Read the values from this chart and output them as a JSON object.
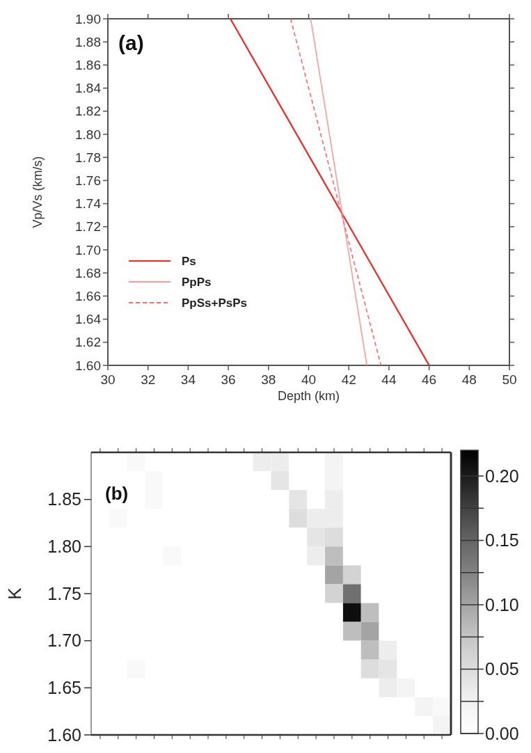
{
  "chart_data": [
    {
      "type": "line",
      "xlabel": "Depth (km)",
      "ylabel": "Vp/Vs (km/s)",
      "annotations": [
        "(a)"
      ],
      "xlim": [
        30,
        50
      ],
      "ylim": [
        1.6,
        1.9
      ],
      "xticks": [
        30,
        32,
        34,
        36,
        38,
        40,
        42,
        44,
        46,
        48,
        50
      ],
      "yticks": [
        {
          "value": 1.6,
          "label": "1.60"
        },
        1.62,
        1.64,
        1.66,
        1.68,
        {
          "value": 1.7,
          "label": "1.70"
        },
        1.72,
        1.74,
        1.76,
        1.78,
        {
          "value": 1.8,
          "label": "1.80"
        },
        1.82,
        1.84,
        1.86,
        1.88,
        {
          "value": 1.9,
          "label": "1.90"
        }
      ],
      "grid": false,
      "legend": "bottom left",
      "marker": "none",
      "series": [
        {
          "name": "Ps",
          "color": "#ff2020",
          "line_style": "solid",
          "x": [
            36.1,
            46.0
          ],
          "values": [
            1.9,
            1.6
          ]
        },
        {
          "name": "PpPs",
          "color": "#ff9a9a",
          "line_style": "solid",
          "x": [
            40.1,
            42.9
          ],
          "values": [
            1.9,
            1.6
          ]
        },
        {
          "name": "PpSs+PsPs",
          "color": "#ff6a6a",
          "line_style": "dashed",
          "x": [
            39.1,
            43.6
          ],
          "values": [
            1.9,
            1.6
          ]
        }
      ]
    },
    {
      "type": "heatmap",
      "ylabel": "K",
      "annotations": [
        "(b)"
      ],
      "ylim": [
        1.6,
        1.9
      ],
      "yticks": [
        {
          "value": 1.6,
          "label": "1.60"
        },
        1.65,
        {
          "value": 1.7,
          "label": "1.70"
        },
        1.75,
        {
          "value": 1.8,
          "label": "1.80"
        },
        1.85
      ],
      "clim": [
        0,
        0.22
      ],
      "cticks": [
        {
          "value": 0,
          "label": "0.00"
        },
        {
          "value": 0.025,
          "label": null
        },
        0.05,
        {
          "value": 0.075,
          "label": null
        },
        {
          "value": 0.1,
          "label": "0.10"
        },
        {
          "value": 0.125,
          "label": null
        },
        0.15,
        {
          "value": 0.175,
          "label": null
        },
        {
          "value": 0.2,
          "label": "0.20"
        }
      ],
      "categories": [
        null,
        null,
        null,
        null,
        null,
        null,
        null,
        null,
        null,
        null,
        null,
        null,
        null,
        null,
        null,
        null,
        null,
        null,
        null,
        null
      ],
      "cells": [
        [
          0,
          0,
          0.01,
          0,
          0,
          0,
          0,
          0,
          0,
          0.03,
          0.03,
          0,
          0,
          0.02,
          0,
          0,
          0,
          0,
          0,
          0
        ],
        [
          0,
          0,
          0,
          0.01,
          0,
          0,
          0,
          0,
          0,
          0,
          0.04,
          0,
          0,
          0.02,
          0,
          0,
          0,
          0,
          0,
          0
        ],
        [
          0,
          0,
          0,
          0.01,
          0,
          0,
          0,
          0,
          0,
          0,
          0,
          0.04,
          0,
          0.03,
          0,
          0,
          0,
          0,
          0,
          0
        ],
        [
          0,
          0.01,
          0,
          0,
          0,
          0,
          0,
          0,
          0,
          0,
          0,
          0.05,
          0.03,
          0.03,
          0,
          0,
          0,
          0,
          0,
          0
        ],
        [
          0,
          0,
          0,
          0,
          0,
          0,
          0,
          0,
          0,
          0,
          0,
          0,
          0.04,
          0.05,
          0,
          0,
          0,
          0,
          0,
          0
        ],
        [
          0,
          0,
          0,
          0,
          0.01,
          0,
          0,
          0,
          0,
          0,
          0,
          0,
          0.03,
          0.08,
          0,
          0,
          0,
          0,
          0,
          0
        ],
        [
          0,
          0,
          0,
          0,
          0,
          0,
          0,
          0,
          0,
          0,
          0,
          0,
          0,
          0.1,
          0.06,
          0,
          0,
          0,
          0,
          0
        ],
        [
          0,
          0,
          0,
          0,
          0,
          0,
          0,
          0,
          0,
          0,
          0,
          0,
          0,
          0.06,
          0.14,
          0,
          0,
          0,
          0,
          0
        ],
        [
          0,
          0,
          0,
          0,
          0,
          0,
          0,
          0,
          0,
          0,
          0,
          0,
          0,
          0,
          0.21,
          0.08,
          0,
          0,
          0,
          0
        ],
        [
          0,
          0,
          0,
          0,
          0,
          0,
          0,
          0,
          0,
          0,
          0,
          0,
          0,
          0,
          0.08,
          0.1,
          0,
          0,
          0,
          0
        ],
        [
          0,
          0,
          0,
          0,
          0,
          0,
          0,
          0,
          0,
          0,
          0,
          0,
          0,
          0,
          0,
          0.08,
          0.03,
          0,
          0,
          0
        ],
        [
          0,
          0,
          0.01,
          0,
          0,
          0,
          0,
          0,
          0,
          0,
          0,
          0,
          0,
          0,
          0,
          0.05,
          0.04,
          0,
          0,
          0
        ],
        [
          0,
          0,
          0,
          0,
          0,
          0,
          0,
          0,
          0,
          0,
          0,
          0,
          0,
          0,
          0,
          0,
          0.03,
          0.02,
          0,
          0
        ],
        [
          0,
          0,
          0,
          0,
          0,
          0,
          0,
          0,
          0,
          0,
          0,
          0,
          0,
          0,
          0,
          0,
          0,
          0,
          0.02,
          0.01
        ],
        [
          0,
          0,
          0,
          0,
          0,
          0,
          0,
          0,
          0,
          0,
          0,
          0,
          0,
          0,
          0,
          0,
          0,
          0,
          0,
          0.02
        ]
      ]
    }
  ]
}
